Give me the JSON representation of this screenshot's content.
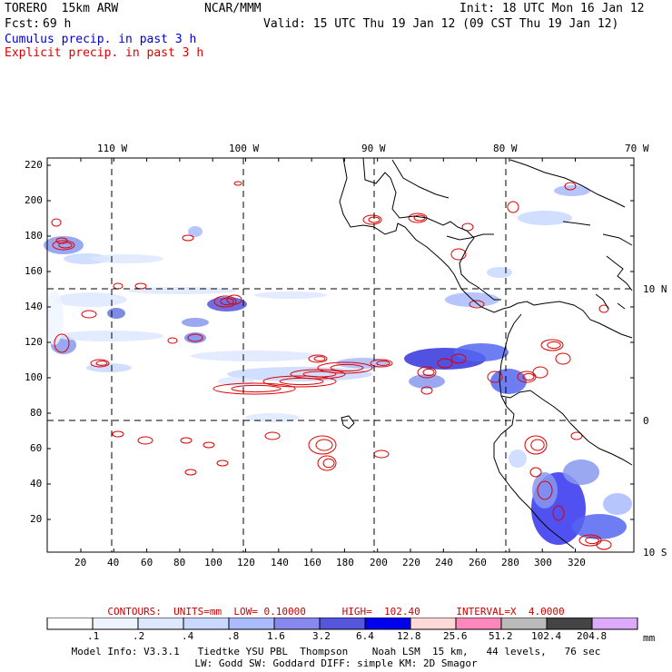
{
  "header": {
    "model": "TORERO  15km ARW",
    "center": "NCAR/MMM",
    "init": "Init: 18 UTC Mon 16 Jan 12",
    "fcst_label": "Fcst:",
    "fcst_value": "69 h",
    "valid": "Valid: 15 UTC Thu 19 Jan 12 (09 CST Thu 19 Jan 12)",
    "legend_cumulus": "Cumulus precip. in past 3 h",
    "legend_explicit": "Explicit precip. in past 3 h"
  },
  "colors": {
    "cumulus": "#0000cc",
    "explicit": "#dd0000",
    "coast": "#000000"
  },
  "map": {
    "lon_labels": [
      "110 W",
      "100 W",
      "90 W",
      "80 W",
      "70 W"
    ],
    "lat_labels": [
      "10 N",
      "0",
      "10 S"
    ],
    "x_ticks": [
      "20",
      "40",
      "60",
      "80",
      "100",
      "120",
      "140",
      "160",
      "180",
      "200",
      "220",
      "240",
      "260",
      "280",
      "300",
      "320"
    ],
    "y_ticks": [
      "220",
      "200",
      "180",
      "160",
      "140",
      "120",
      "100",
      "80",
      "60",
      "40",
      "20"
    ]
  },
  "contours_line": {
    "text": "CONTOURS:  UNITS=mm  LOW= 0.10000      HIGH=  102.40      INTERVAL=X  4.0000"
  },
  "scale": {
    "values": [
      ".1",
      ".2",
      ".4",
      ".8",
      "1.6",
      "3.2",
      "6.4",
      "12.8",
      "25.6",
      "51.2",
      "102.4",
      "204.8"
    ],
    "unit": "mm",
    "colors": [
      "#ffffff",
      "#eef4ff",
      "#dde8ff",
      "#c8d8ff",
      "#aabbff",
      "#8888ee",
      "#5555dd",
      "#0000ee",
      "#ffd8d8",
      "#ff88bb",
      "#bbbbbb",
      "#444444",
      "#ddaaff"
    ]
  },
  "footer": {
    "line1": "Model Info: V3.3.1   Tiedtke YSU PBL  Thompson    Noah LSM  15 km,   44 levels,   76 sec",
    "line2": "LW: Godd SW: Goddard DIFF: simple KM: 2D Smagor"
  }
}
